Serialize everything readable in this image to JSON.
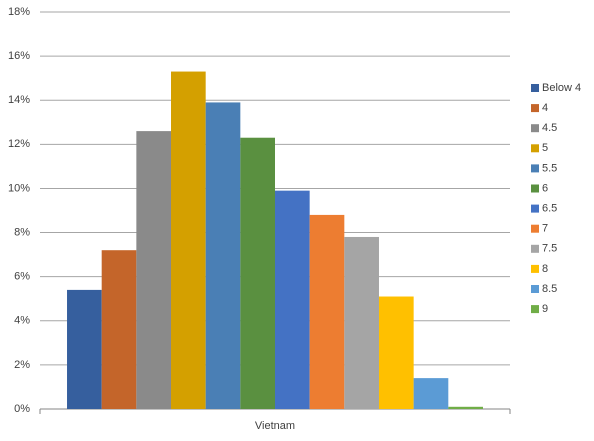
{
  "chart_data": {
    "type": "bar",
    "categories": [
      "Vietnam"
    ],
    "series": [
      {
        "name": "Below 4",
        "color": "#365f9e",
        "values": [
          5.4
        ]
      },
      {
        "name": "4",
        "color": "#c4652a",
        "values": [
          7.2
        ]
      },
      {
        "name": "4.5",
        "color": "#8a8a8a",
        "values": [
          12.6
        ]
      },
      {
        "name": "5",
        "color": "#d4a000",
        "values": [
          15.3
        ]
      },
      {
        "name": "5.5",
        "color": "#4a7fb5",
        "values": [
          13.9
        ]
      },
      {
        "name": "6",
        "color": "#5a9040",
        "values": [
          12.3
        ]
      },
      {
        "name": "6.5",
        "color": "#4472c4",
        "values": [
          9.9
        ]
      },
      {
        "name": "7",
        "color": "#ed7d31",
        "values": [
          8.8
        ]
      },
      {
        "name": "7.5",
        "color": "#a5a5a5",
        "values": [
          7.8
        ]
      },
      {
        "name": "8",
        "color": "#ffc000",
        "values": [
          5.1
        ]
      },
      {
        "name": "8.5",
        "color": "#5b9bd5",
        "values": [
          1.4
        ]
      },
      {
        "name": "9",
        "color": "#70ad47",
        "values": [
          0.1
        ]
      }
    ],
    "ylim": [
      0,
      18
    ],
    "yticks": [
      {
        "value": 0,
        "label": "0%"
      },
      {
        "value": 2,
        "label": "2%"
      },
      {
        "value": 4,
        "label": "4%"
      },
      {
        "value": 6,
        "label": "6%"
      },
      {
        "value": 8,
        "label": "8%"
      },
      {
        "value": 10,
        "label": "10%"
      },
      {
        "value": 12,
        "label": "12%"
      },
      {
        "value": 14,
        "label": "14%"
      },
      {
        "value": 16,
        "label": "16%"
      },
      {
        "value": 18,
        "label": "18%"
      }
    ],
    "grid": true,
    "legend": "right"
  }
}
